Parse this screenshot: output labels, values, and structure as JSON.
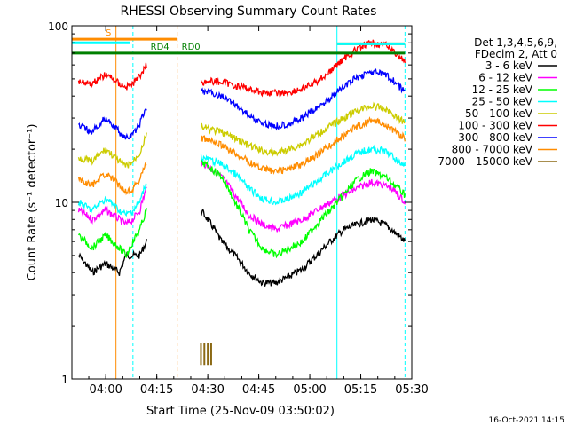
{
  "chart_data": {
    "type": "line",
    "title": "RHESSI Observing Summary Count Rates",
    "xlabel": "Start Time (25-Nov-09 03:50:02)",
    "ylabel": "Count Rate (s⁻¹ detector⁻¹)",
    "x_start": "03:50:02",
    "x_end": "05:30",
    "x_ticks": [
      "04:00",
      "04:15",
      "04:30",
      "04:45",
      "05:00",
      "05:15",
      "05:30"
    ],
    "y_scale": "log",
    "y_range": [
      1,
      100
    ],
    "y_ticks": [
      "1",
      "10",
      "100"
    ],
    "legend_position": "top-right",
    "legend_header": [
      "Det 1,3,4,5,6,9,",
      "FDecim 2, Att 0"
    ],
    "footer_date": "16-Oct-2021 14:15",
    "series": [
      {
        "name": "3 - 6 keV",
        "color": "#000000",
        "x": [
          "03:52",
          "03:56",
          "04:00",
          "04:04",
          "04:06",
          "04:08",
          "04:10",
          "04:12",
          "04:28",
          "04:30",
          "04:34",
          "04:38",
          "04:42",
          "04:46",
          "04:50",
          "04:54",
          "04:58",
          "05:02",
          "05:06",
          "05:10",
          "05:14",
          "05:18",
          "05:22",
          "05:24",
          "05:26",
          "05:28"
        ],
        "values": [
          5.0,
          4.0,
          4.5,
          4.0,
          5.0,
          5.0,
          5.0,
          6.0,
          9.0,
          8.0,
          6.0,
          5.0,
          4.0,
          3.5,
          3.5,
          3.8,
          4.2,
          5.0,
          6.0,
          7.0,
          7.5,
          8.0,
          7.5,
          7.0,
          6.5,
          6.0
        ]
      },
      {
        "name": "6 - 12 keV",
        "color": "#ff00ff",
        "x": [
          "03:52",
          "03:56",
          "04:00",
          "04:04",
          "04:06",
          "04:08",
          "04:10",
          "04:12",
          "04:28",
          "04:30",
          "04:34",
          "04:38",
          "04:42",
          "04:46",
          "04:50",
          "04:54",
          "04:58",
          "05:02",
          "05:06",
          "05:10",
          "05:14",
          "05:18",
          "05:22",
          "05:24",
          "05:26",
          "05:28"
        ],
        "values": [
          9.0,
          8.0,
          9.0,
          8.0,
          7.5,
          8.0,
          9.0,
          12.0,
          17.0,
          16.0,
          14.0,
          11.0,
          8.5,
          7.5,
          7.0,
          7.5,
          8.0,
          9.0,
          10.0,
          11.0,
          12.0,
          13.0,
          12.5,
          12.0,
          11.0,
          10.0
        ]
      },
      {
        "name": "12 - 25 keV",
        "color": "#00ff00",
        "x": [
          "03:52",
          "03:56",
          "04:00",
          "04:04",
          "04:06",
          "04:08",
          "04:10",
          "04:12",
          "04:28",
          "04:30",
          "04:34",
          "04:38",
          "04:42",
          "04:46",
          "04:50",
          "04:54",
          "04:58",
          "05:02",
          "05:06",
          "05:10",
          "05:14",
          "05:18",
          "05:22",
          "05:24",
          "05:26",
          "05:28"
        ],
        "values": [
          6.5,
          5.5,
          6.5,
          5.5,
          5.0,
          6.0,
          7.0,
          9.0,
          17.0,
          16.0,
          14.0,
          10.0,
          7.0,
          5.5,
          5.0,
          5.5,
          6.0,
          7.5,
          9.0,
          11.0,
          13.5,
          15.0,
          14.0,
          13.0,
          12.0,
          11.0
        ]
      },
      {
        "name": "25 - 50 keV",
        "color": "#00ffff",
        "x": [
          "03:52",
          "03:56",
          "04:00",
          "04:04",
          "04:06",
          "04:08",
          "04:10",
          "04:12",
          "04:28",
          "04:30",
          "04:34",
          "04:38",
          "04:42",
          "04:46",
          "04:50",
          "04:54",
          "04:58",
          "05:02",
          "05:06",
          "05:10",
          "05:14",
          "05:18",
          "05:22",
          "05:24",
          "05:26",
          "05:28"
        ],
        "values": [
          10.0,
          9.0,
          10.5,
          9.0,
          8.5,
          9.0,
          10.0,
          13.0,
          18.0,
          17.5,
          16.5,
          14.5,
          12.0,
          10.5,
          10.0,
          10.5,
          11.5,
          13.0,
          15.0,
          17.0,
          19.0,
          20.0,
          19.5,
          18.5,
          17.0,
          16.0
        ]
      },
      {
        "name": "50 - 100 keV",
        "color": "#cccc00",
        "x": [
          "03:52",
          "03:56",
          "04:00",
          "04:04",
          "04:06",
          "04:08",
          "04:10",
          "04:12",
          "04:28",
          "04:30",
          "04:34",
          "04:38",
          "04:42",
          "04:46",
          "04:50",
          "04:54",
          "04:58",
          "05:02",
          "05:06",
          "05:10",
          "05:14",
          "05:18",
          "05:22",
          "05:24",
          "05:26",
          "05:28"
        ],
        "values": [
          18.0,
          17.0,
          20.0,
          17.0,
          16.0,
          17.0,
          19.0,
          24.0,
          27.0,
          26.0,
          25.0,
          23.0,
          21.0,
          19.5,
          19.0,
          20.0,
          21.5,
          24.0,
          27.0,
          30.0,
          33.0,
          35.0,
          34.0,
          32.0,
          30.0,
          28.0
        ]
      },
      {
        "name": "100 - 300 keV",
        "color": "#ff0000",
        "x": [
          "03:52",
          "03:56",
          "04:00",
          "04:04",
          "04:06",
          "04:08",
          "04:10",
          "04:12",
          "04:28",
          "04:30",
          "04:34",
          "04:38",
          "04:42",
          "04:46",
          "04:50",
          "04:54",
          "04:58",
          "05:02",
          "05:06",
          "05:10",
          "05:14",
          "05:18",
          "05:22",
          "05:24",
          "05:26",
          "05:28"
        ],
        "values": [
          49.0,
          47.0,
          53.0,
          47.0,
          45.0,
          47.0,
          52.0,
          60.0,
          48.0,
          48.5,
          48.0,
          46.0,
          44.0,
          42.0,
          41.5,
          42.0,
          44.0,
          48.0,
          55.0,
          65.0,
          74.0,
          80.0,
          78.0,
          74.0,
          68.0,
          62.0
        ]
      },
      {
        "name": "300 - 800 keV",
        "color": "#0000ff",
        "x": [
          "03:52",
          "03:56",
          "04:00",
          "04:04",
          "04:06",
          "04:08",
          "04:10",
          "04:12",
          "04:28",
          "04:30",
          "04:34",
          "04:38",
          "04:42",
          "04:46",
          "04:50",
          "04:54",
          "04:58",
          "05:02",
          "05:06",
          "05:10",
          "05:14",
          "05:18",
          "05:22",
          "05:24",
          "05:26",
          "05:28"
        ],
        "values": [
          27.0,
          25.0,
          30.0,
          25.0,
          23.0,
          24.0,
          28.0,
          34.0,
          43.0,
          42.0,
          40.0,
          36.0,
          31.0,
          28.0,
          27.0,
          28.0,
          30.0,
          34.0,
          39.0,
          45.0,
          51.0,
          55.0,
          53.0,
          50.0,
          46.0,
          42.0
        ]
      },
      {
        "name": "800 - 7000 keV",
        "color": "#ff8c00",
        "x": [
          "03:52",
          "03:56",
          "04:00",
          "04:04",
          "04:06",
          "04:08",
          "04:10",
          "04:12",
          "04:28",
          "04:30",
          "04:34",
          "04:38",
          "04:42",
          "04:46",
          "04:50",
          "04:54",
          "04:58",
          "05:02",
          "05:06",
          "05:10",
          "05:14",
          "05:18",
          "05:22",
          "05:24",
          "05:26",
          "05:28"
        ],
        "values": [
          13.5,
          12.5,
          14.5,
          12.5,
          11.5,
          12.0,
          13.5,
          17.0,
          23.0,
          22.5,
          21.0,
          19.0,
          17.0,
          15.5,
          15.0,
          15.5,
          16.5,
          18.5,
          21.0,
          24.0,
          27.0,
          29.0,
          28.0,
          26.0,
          24.5,
          23.0
        ]
      },
      {
        "name": "7000 - 15000 keV",
        "color": "#8b6914",
        "x": [
          "04:28",
          "04:28",
          "04:29",
          "04:29",
          "04:30",
          "04:30",
          "04:31",
          "04:31"
        ],
        "values": [
          1.2,
          1.6,
          1.2,
          1.6,
          1.2,
          1.6,
          1.2,
          1.6
        ]
      }
    ],
    "annotations": [
      {
        "label": "S",
        "color": "#ff8c00",
        "x_range": [
          "03:50:02",
          "04:21"
        ],
        "value": 84
      },
      {
        "label": "",
        "color": "#00ffff",
        "x_range": [
          "03:50:02",
          "04:07"
        ],
        "value": 80
      },
      {
        "label": "RD4",
        "color": "#008000",
        "x_range": [
          "03:50:02",
          "04:21"
        ],
        "value": 70
      },
      {
        "label": "RD0",
        "color": "#008000",
        "x_range": [
          "04:21",
          "05:28"
        ],
        "value": 70
      },
      {
        "label": "",
        "color": "#ff8c00",
        "x_range": [
          "05:08",
          "05:28"
        ],
        "value": 79
      },
      {
        "label": "",
        "color": "#00ffff",
        "x_range": [
          "05:08",
          "05:28"
        ],
        "value": 79
      }
    ],
    "vlines": [
      {
        "x": "03:50:02",
        "color": "#00ffff",
        "style": "solid"
      },
      {
        "x": "04:03",
        "color": "#ff8c00",
        "style": "solid"
      },
      {
        "x": "04:08",
        "color": "#00ffff",
        "style": "dashed"
      },
      {
        "x": "04:21",
        "color": "#ff8c00",
        "style": "dashed"
      },
      {
        "x": "05:08",
        "color": "#00ffff",
        "style": "solid"
      },
      {
        "x": "05:28",
        "color": "#00ffff",
        "style": "dashed"
      }
    ],
    "gaps": [
      [
        "04:12",
        "04:28"
      ]
    ]
  }
}
